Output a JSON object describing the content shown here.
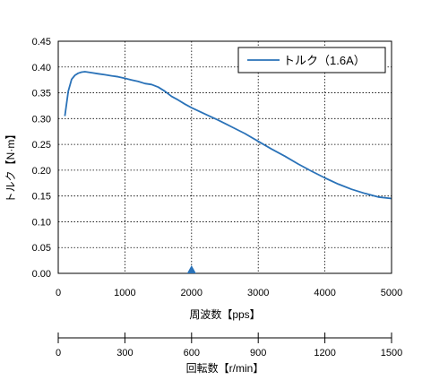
{
  "chart_data": {
    "type": "line",
    "xlabel": "周波数【pps】",
    "ylabel": "トルク【N·m】",
    "xlim": [
      0,
      5000
    ],
    "ylim": [
      0,
      0.45
    ],
    "x_ticks": [
      "0",
      "1000",
      "2000",
      "3000",
      "4000",
      "5000"
    ],
    "y_ticks": [
      "0.00",
      "0.05",
      "0.10",
      "0.15",
      "0.20",
      "0.25",
      "0.30",
      "0.35",
      "0.40",
      "0.45"
    ],
    "grid": "dotted",
    "legend_position": "top-right",
    "marker_x": 2000,
    "series": [
      {
        "name": "トルク（1.6A）",
        "color": "#2a72b8",
        "x": [
          100,
          150,
          200,
          250,
          300,
          350,
          400,
          500,
          600,
          700,
          800,
          900,
          1000,
          1100,
          1200,
          1300,
          1400,
          1500,
          1600,
          1700,
          1800,
          1900,
          2000,
          2200,
          2400,
          2600,
          2800,
          3000,
          3200,
          3400,
          3600,
          3800,
          4000,
          4200,
          4400,
          4600,
          4800,
          5000
        ],
        "y": [
          0.305,
          0.353,
          0.376,
          0.384,
          0.388,
          0.39,
          0.391,
          0.389,
          0.387,
          0.385,
          0.383,
          0.381,
          0.378,
          0.375,
          0.372,
          0.368,
          0.366,
          0.361,
          0.353,
          0.343,
          0.336,
          0.328,
          0.321,
          0.309,
          0.297,
          0.284,
          0.271,
          0.256,
          0.241,
          0.227,
          0.212,
          0.198,
          0.185,
          0.173,
          0.163,
          0.155,
          0.148,
          0.145
        ]
      }
    ],
    "secondary_x_axis": {
      "label": "回転数【r/min】",
      "range": [
        0,
        1500
      ],
      "ticks": [
        "0",
        "300",
        "600",
        "900",
        "1200",
        "1500"
      ]
    }
  }
}
